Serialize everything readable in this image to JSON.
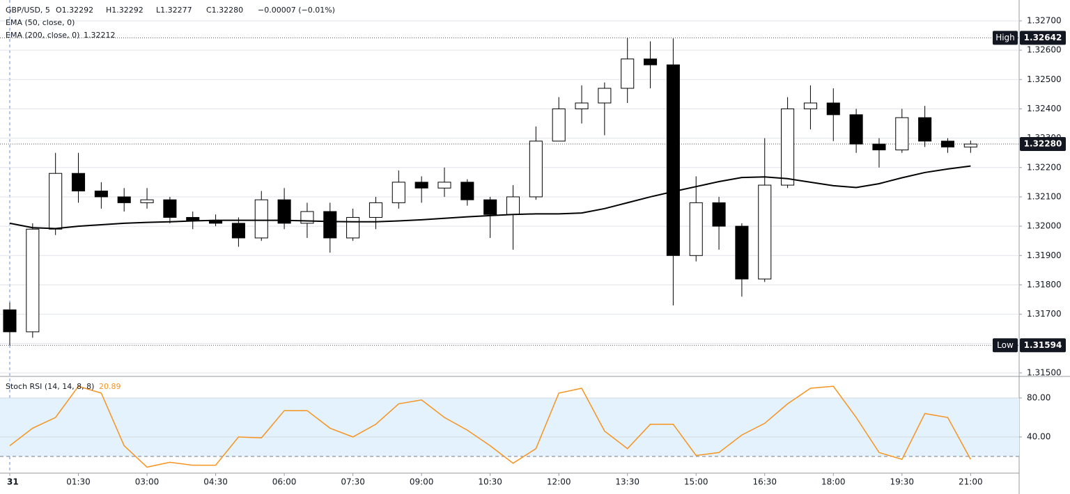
{
  "chart_data": [
    {
      "type": "candlestick",
      "title": "GBP/USD, 5",
      "ohlc_labels": [
        "O1.32292",
        "H1.32292",
        "L1.32277",
        "C1.32280"
      ],
      "change": "−0.00007 (−0.01%)",
      "x": [
        "00:00",
        "00:30",
        "01:00",
        "01:30",
        "02:00",
        "02:30",
        "03:00",
        "03:30",
        "04:00",
        "04:30",
        "05:00",
        "05:30",
        "06:00",
        "06:30",
        "07:00",
        "07:30",
        "08:00",
        "08:30",
        "09:00",
        "09:30",
        "10:00",
        "10:30",
        "11:00",
        "11:30",
        "12:00",
        "12:30",
        "13:00",
        "13:30",
        "14:00",
        "14:30",
        "15:00",
        "15:30",
        "16:00",
        "16:30",
        "17:00",
        "17:30",
        "18:00",
        "18:30",
        "19:00",
        "19:30",
        "20:00",
        "20:30",
        "21:00"
      ],
      "open": [
        1.31715,
        1.3164,
        1.3199,
        1.3218,
        1.3212,
        1.321,
        1.3208,
        1.3209,
        1.3203,
        1.3202,
        1.3201,
        1.3196,
        1.3209,
        1.3201,
        1.3205,
        1.3196,
        1.3203,
        1.3208,
        1.3215,
        1.3213,
        1.3215,
        1.3209,
        1.3204,
        1.321,
        1.3229,
        1.324,
        1.3242,
        1.3247,
        1.3257,
        1.3255,
        1.319,
        1.3208,
        1.32,
        1.3182,
        1.3214,
        1.324,
        1.3242,
        1.3238,
        1.3228,
        1.3226,
        1.3237,
        1.3229,
        1.3227
      ],
      "high": [
        1.3174,
        1.3201,
        1.3225,
        1.3225,
        1.3215,
        1.3213,
        1.3213,
        1.321,
        1.3205,
        1.3204,
        1.3203,
        1.3212,
        1.3213,
        1.3208,
        1.3208,
        1.3206,
        1.321,
        1.3219,
        1.3217,
        1.322,
        1.3216,
        1.321,
        1.3214,
        1.3234,
        1.3244,
        1.3248,
        1.3249,
        1.32642,
        1.3263,
        1.3264,
        1.3217,
        1.321,
        1.3201,
        1.323,
        1.3244,
        1.3248,
        1.3247,
        1.324,
        1.323,
        1.324,
        1.3241,
        1.323,
        1.32292
      ],
      "low": [
        1.31594,
        1.3162,
        1.3197,
        1.3208,
        1.3206,
        1.3205,
        1.3206,
        1.3201,
        1.3199,
        1.32,
        1.3193,
        1.3195,
        1.3199,
        1.3196,
        1.3191,
        1.3195,
        1.3199,
        1.3206,
        1.3208,
        1.321,
        1.3207,
        1.3196,
        1.3192,
        1.3209,
        1.3229,
        1.3235,
        1.3231,
        1.3242,
        1.3247,
        1.3173,
        1.3188,
        1.3192,
        1.3176,
        1.3181,
        1.3213,
        1.3233,
        1.3229,
        1.3225,
        1.322,
        1.3225,
        1.3227,
        1.3225,
        1.3225
      ],
      "close": [
        1.3164,
        1.3199,
        1.3218,
        1.3212,
        1.321,
        1.3208,
        1.3209,
        1.3203,
        1.3202,
        1.3201,
        1.3196,
        1.3209,
        1.3201,
        1.3205,
        1.3196,
        1.3203,
        1.3208,
        1.3215,
        1.3213,
        1.3215,
        1.3209,
        1.3204,
        1.321,
        1.3229,
        1.324,
        1.3242,
        1.3247,
        1.3257,
        1.3255,
        1.319,
        1.3208,
        1.32,
        1.3182,
        1.3214,
        1.324,
        1.3242,
        1.3238,
        1.3228,
        1.3226,
        1.3237,
        1.3229,
        1.3227,
        1.3228
      ],
      "up_color": "#ffffff",
      "down_color": "#000000",
      "indicators": [
        {
          "name": "EMA (50, close, 0)"
        },
        {
          "name": "EMA (200, close, 0)",
          "value_label": "1.32212",
          "color": "#000000",
          "values": [
            1.3201,
            1.31995,
            1.31992,
            1.32,
            1.32005,
            1.3201,
            1.32013,
            1.32015,
            1.32018,
            1.3202,
            1.3202,
            1.3202,
            1.3202,
            1.32018,
            1.32016,
            1.32015,
            1.32015,
            1.32018,
            1.32022,
            1.32027,
            1.32032,
            1.32036,
            1.3204,
            1.32042,
            1.32042,
            1.32045,
            1.3206,
            1.3208,
            1.321,
            1.32118,
            1.32135,
            1.32152,
            1.32166,
            1.32168,
            1.32162,
            1.3215,
            1.32138,
            1.32132,
            1.32145,
            1.32165,
            1.32183,
            1.32195,
            1.32205
          ]
        }
      ],
      "markers": [
        {
          "label": "High",
          "value": 1.32642,
          "value_label": "1.32642"
        },
        {
          "label": "Low",
          "value": 1.31594,
          "value_label": "1.31594"
        },
        {
          "value": 1.3228,
          "value_label": "1.32280"
        }
      ],
      "ylim": [
        1.31488,
        1.32771
      ],
      "yticks": [
        {
          "value": 1.327,
          "label": "1.32700"
        },
        {
          "value": 1.326,
          "label": "1.32600"
        },
        {
          "value": 1.325,
          "label": "1.32500"
        },
        {
          "value": 1.324,
          "label": "1.32400"
        },
        {
          "value": 1.323,
          "label": "1.32300"
        },
        {
          "value": 1.322,
          "label": "1.32200"
        },
        {
          "value": 1.321,
          "label": "1.32100"
        },
        {
          "value": 1.32,
          "label": "1.32000"
        },
        {
          "value": 1.319,
          "label": "1.31900"
        },
        {
          "value": 1.318,
          "label": "1.31800"
        },
        {
          "value": 1.317,
          "label": "1.31700"
        },
        {
          "value": 1.316,
          "label": "1.31600"
        },
        {
          "value": 1.315,
          "label": "1.31500"
        }
      ],
      "xlim": [
        "00:00",
        "22:00"
      ],
      "xticks": [
        {
          "value": "00:00",
          "label": "31"
        },
        "01:30",
        "03:00",
        "04:30",
        "06:00",
        "07:30",
        "09:00",
        "10:30",
        "12:00",
        "13:30",
        "15:00",
        "16:30",
        "18:00",
        "19:30",
        "21:00"
      ],
      "grid": true
    },
    {
      "type": "line",
      "name": "Stoch RSI (14, 14, 8, 8)",
      "value_label": "20.89",
      "color": "#f7931e",
      "band": [
        20,
        80
      ],
      "band_color": "#e3f2fd",
      "x": [
        "00:00",
        "00:30",
        "01:00",
        "01:30",
        "02:00",
        "02:30",
        "03:00",
        "03:30",
        "04:00",
        "04:30",
        "05:00",
        "05:30",
        "06:00",
        "06:30",
        "07:00",
        "07:30",
        "08:00",
        "08:30",
        "09:00",
        "09:30",
        "10:00",
        "10:30",
        "11:00",
        "11:30",
        "12:00",
        "12:30",
        "13:00",
        "13:30",
        "14:00",
        "14:30",
        "15:00",
        "15:30",
        "16:00",
        "16:30",
        "17:00",
        "17:30",
        "18:00",
        "18:30",
        "19:00",
        "19:30",
        "20:00",
        "20:30",
        "21:00"
      ],
      "values": [
        31,
        49,
        60,
        92,
        85,
        31,
        9,
        14,
        11,
        11,
        40,
        39,
        67,
        67,
        49,
        40,
        53,
        74,
        78,
        60,
        47,
        31,
        13,
        28,
        85,
        90,
        46,
        28,
        53,
        53,
        21,
        24,
        42,
        54,
        74,
        90,
        92,
        60,
        24,
        17,
        64,
        60,
        17
      ],
      "ylim": [
        4.3,
        100.7
      ],
      "yticks": [
        {
          "value": 80,
          "label": "80.00"
        },
        {
          "value": 40,
          "label": "40.00"
        }
      ]
    }
  ]
}
